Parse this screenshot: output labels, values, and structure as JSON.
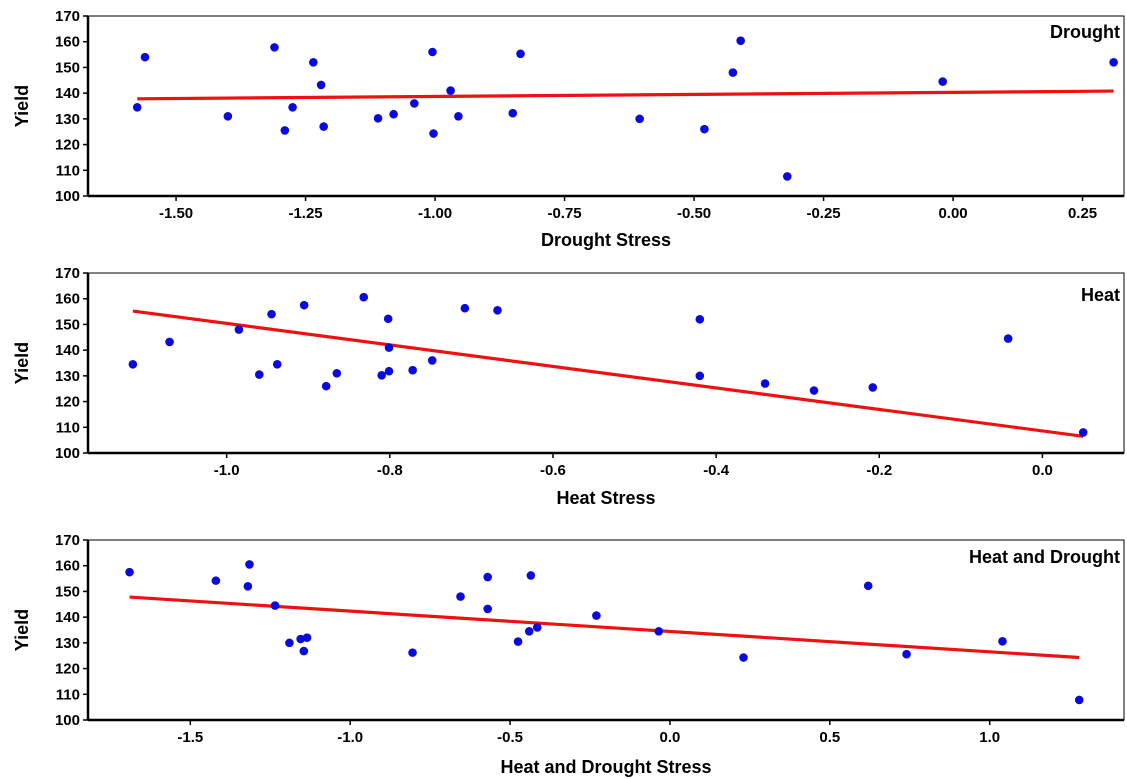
{
  "colors": {
    "points": "#0a0adc",
    "fit_line": "#ee1111",
    "axes": "#000000"
  },
  "chart_data": [
    {
      "type": "scatter",
      "title": "Drought",
      "xlabel": "Drought Stress",
      "ylabel": "Yield",
      "xlim": [
        -1.67,
        0.33
      ],
      "ylim": [
        100,
        170
      ],
      "xticks": [
        -1.5,
        -1.25,
        -1.0,
        -0.75,
        -0.5,
        -0.25,
        0.0,
        0.25
      ],
      "xtick_labels": [
        "-1.50",
        "-1.25",
        "-1.00",
        "-0.75",
        "-0.50",
        "-0.25",
        "0.00",
        "0.25"
      ],
      "yticks": [
        100,
        110,
        120,
        130,
        140,
        150,
        160,
        170
      ],
      "grid": false,
      "points": [
        {
          "x": -1.575,
          "y": 134.5
        },
        {
          "x": -1.56,
          "y": 154
        },
        {
          "x": -1.4,
          "y": 131
        },
        {
          "x": -1.31,
          "y": 157.8
        },
        {
          "x": -1.29,
          "y": 125.5
        },
        {
          "x": -1.275,
          "y": 134.5
        },
        {
          "x": -1.235,
          "y": 152
        },
        {
          "x": -1.22,
          "y": 143.2
        },
        {
          "x": -1.215,
          "y": 127
        },
        {
          "x": -1.11,
          "y": 130.2
        },
        {
          "x": -1.08,
          "y": 131.8
        },
        {
          "x": -1.04,
          "y": 136
        },
        {
          "x": -1.005,
          "y": 156
        },
        {
          "x": -1.003,
          "y": 124.3
        },
        {
          "x": -0.97,
          "y": 141
        },
        {
          "x": -0.955,
          "y": 131
        },
        {
          "x": -0.85,
          "y": 132.2
        },
        {
          "x": -0.835,
          "y": 155.3
        },
        {
          "x": -0.605,
          "y": 130
        },
        {
          "x": -0.48,
          "y": 126
        },
        {
          "x": -0.425,
          "y": 148
        },
        {
          "x": -0.41,
          "y": 160.4
        },
        {
          "x": -0.32,
          "y": 107.6
        },
        {
          "x": -0.02,
          "y": 144.5
        },
        {
          "x": 0.31,
          "y": 152
        }
      ],
      "fit_line": {
        "x": [
          -1.575,
          0.31
        ],
        "y": [
          137.8,
          140.8
        ]
      }
    },
    {
      "type": "scatter",
      "title": "Heat",
      "xlabel": "Heat Stress",
      "ylabel": "Yield",
      "xlim": [
        -1.17,
        0.1
      ],
      "ylim": [
        100,
        170
      ],
      "xticks": [
        -1.0,
        -0.8,
        -0.6,
        -0.4,
        -0.2,
        0.0
      ],
      "xtick_labels": [
        "-1.0",
        "-0.8",
        "-0.6",
        "-0.4",
        "-0.2",
        "0.0"
      ],
      "yticks": [
        100,
        110,
        120,
        130,
        140,
        150,
        160,
        170
      ],
      "grid": false,
      "points": [
        {
          "x": -1.115,
          "y": 134.5
        },
        {
          "x": -1.07,
          "y": 143.2
        },
        {
          "x": -0.985,
          "y": 148
        },
        {
          "x": -0.96,
          "y": 130.5
        },
        {
          "x": -0.945,
          "y": 154
        },
        {
          "x": -0.938,
          "y": 134.5
        },
        {
          "x": -0.905,
          "y": 157.5
        },
        {
          "x": -0.878,
          "y": 126
        },
        {
          "x": -0.865,
          "y": 131
        },
        {
          "x": -0.832,
          "y": 160.6
        },
        {
          "x": -0.81,
          "y": 130.2
        },
        {
          "x": -0.802,
          "y": 152.2
        },
        {
          "x": -0.801,
          "y": 141
        },
        {
          "x": -0.801,
          "y": 131.8
        },
        {
          "x": -0.772,
          "y": 132.2
        },
        {
          "x": -0.748,
          "y": 136
        },
        {
          "x": -0.708,
          "y": 156.3
        },
        {
          "x": -0.668,
          "y": 155.5
        },
        {
          "x": -0.42,
          "y": 152
        },
        {
          "x": -0.42,
          "y": 130
        },
        {
          "x": -0.34,
          "y": 127
        },
        {
          "x": -0.28,
          "y": 124.3
        },
        {
          "x": -0.208,
          "y": 125.5
        },
        {
          "x": -0.042,
          "y": 144.5
        },
        {
          "x": 0.05,
          "y": 108
        }
      ],
      "fit_line": {
        "x": [
          -1.115,
          0.05
        ],
        "y": [
          155.2,
          106.5
        ]
      }
    },
    {
      "type": "scatter",
      "title": "Heat and Drought",
      "xlabel": "Heat and Drought Stress",
      "ylabel": "Yield",
      "xlim": [
        -1.82,
        1.42
      ],
      "ylim": [
        100,
        170
      ],
      "xticks": [
        -1.5,
        -1.0,
        -0.5,
        0.0,
        0.5,
        1.0
      ],
      "xtick_labels": [
        "-1.5",
        "-1.0",
        "-0.5",
        "0.0",
        "0.5",
        "1.0"
      ],
      "yticks": [
        100,
        110,
        120,
        130,
        140,
        150,
        160,
        170
      ],
      "grid": false,
      "points": [
        {
          "x": -1.69,
          "y": 157.5
        },
        {
          "x": -1.42,
          "y": 154.2
        },
        {
          "x": -1.315,
          "y": 160.5
        },
        {
          "x": -1.32,
          "y": 152
        },
        {
          "x": -1.235,
          "y": 144.5
        },
        {
          "x": -1.19,
          "y": 130
        },
        {
          "x": -1.155,
          "y": 131.5
        },
        {
          "x": -1.135,
          "y": 132
        },
        {
          "x": -1.145,
          "y": 126.8
        },
        {
          "x": -0.805,
          "y": 126.2
        },
        {
          "x": -0.655,
          "y": 148
        },
        {
          "x": -0.57,
          "y": 143.2
        },
        {
          "x": -0.57,
          "y": 155.6
        },
        {
          "x": -0.475,
          "y": 130.5
        },
        {
          "x": -0.44,
          "y": 134.5
        },
        {
          "x": -0.435,
          "y": 156.2
        },
        {
          "x": -0.415,
          "y": 136
        },
        {
          "x": -0.23,
          "y": 140.6
        },
        {
          "x": -0.035,
          "y": 134.5
        },
        {
          "x": 0.23,
          "y": 124.3
        },
        {
          "x": 0.62,
          "y": 152.2
        },
        {
          "x": 0.74,
          "y": 125.6
        },
        {
          "x": 1.04,
          "y": 130.6
        },
        {
          "x": 1.28,
          "y": 107.8
        }
      ],
      "fit_line": {
        "x": [
          -1.69,
          1.28
        ],
        "y": [
          147.8,
          124.3
        ]
      }
    }
  ]
}
